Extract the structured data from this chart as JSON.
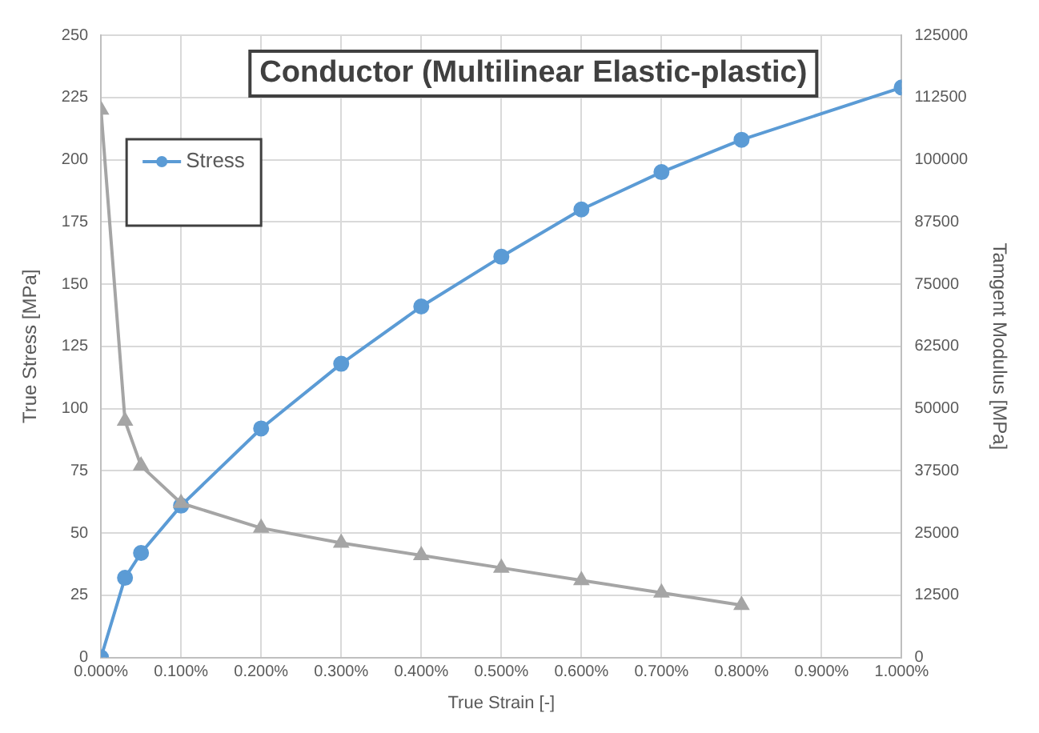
{
  "chart_data": {
    "type": "line",
    "title": "Conductor (Multilinear Elastic-plastic)",
    "xlabel": "True Strain [-]",
    "ylabel": "True Stress [MPa]",
    "y2label": "Tamgent Modulus [MPa]",
    "x": [
      0,
      0.03,
      0.05,
      0.1,
      0.2,
      0.3,
      0.4,
      0.5,
      0.6,
      0.7,
      0.8,
      1.0
    ],
    "series": [
      {
        "name": "Stress",
        "color": "#5b9bd5",
        "marker": "circle",
        "values": [
          0,
          32,
          42,
          61,
          92,
          118,
          141,
          161,
          180,
          195,
          208,
          229
        ]
      },
      {
        "color": "#a5a5a5",
        "marker": "triangle",
        "axis": "y2",
        "x": [
          0,
          0.03,
          0.05,
          0.1,
          0.2,
          0.3,
          0.4,
          0.5,
          0.6,
          0.7,
          0.8
        ],
        "values": [
          110000,
          47500,
          38500,
          31000,
          26000,
          23000,
          20500,
          18000,
          15500,
          13000,
          10500
        ]
      }
    ],
    "xlim": [
      0,
      1
    ],
    "xticks": [
      {
        "value": 0,
        "label": "0.000%"
      },
      {
        "value": 0.1,
        "label": "0.100%"
      },
      {
        "value": 0.2,
        "label": "0.200%"
      },
      {
        "value": 0.3,
        "label": "0.300%"
      },
      {
        "value": 0.4,
        "label": "0.400%"
      },
      {
        "value": 0.5,
        "label": "0.500%"
      },
      {
        "value": 0.6,
        "label": "0.600%"
      },
      {
        "value": 0.7,
        "label": "0.700%"
      },
      {
        "value": 0.8,
        "label": "0.800%"
      },
      {
        "value": 0.9,
        "label": "0.900%"
      },
      {
        "value": 1,
        "label": "1.000%"
      }
    ],
    "ylim": [
      0,
      250
    ],
    "yticks": [
      0,
      25,
      50,
      75,
      100,
      125,
      150,
      175,
      200,
      225,
      250
    ],
    "y2lim": [
      0,
      125000
    ],
    "y2ticks": [
      0,
      12500,
      25000,
      37500,
      50000,
      62500,
      75000,
      87500,
      100000,
      112500,
      125000
    ],
    "grid": true,
    "legend": "top left",
    "line_style": "solid"
  }
}
